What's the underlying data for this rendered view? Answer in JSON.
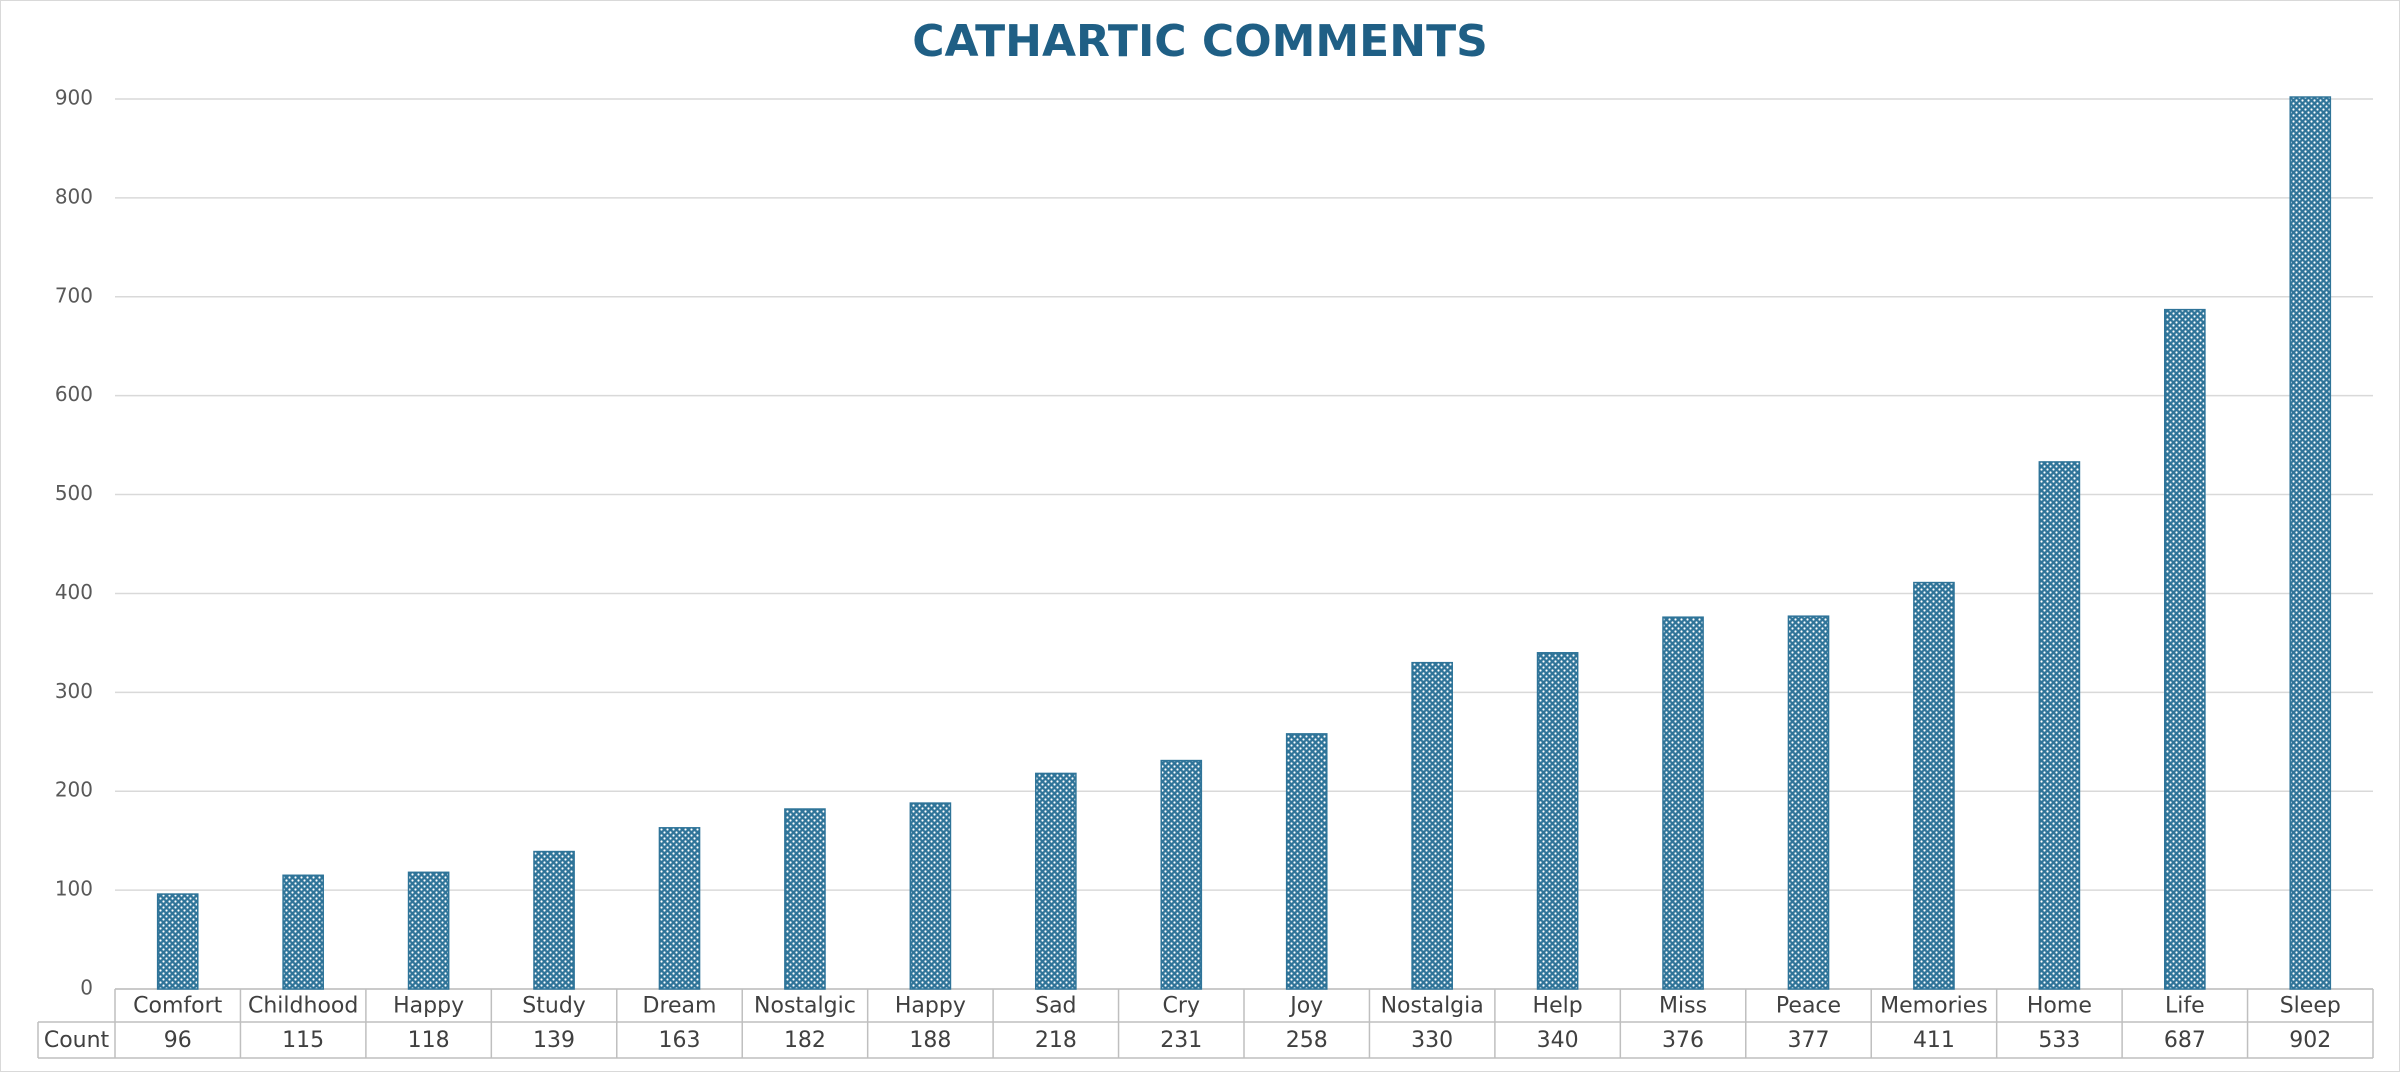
{
  "chart_data": {
    "type": "bar",
    "title": "CATHARTIC COMMENTS",
    "categories": [
      "Comfort",
      "Childhood",
      "Happy",
      "Study",
      "Dream",
      "Nostalgic",
      "Happy",
      "Sad",
      "Cry",
      "Joy",
      "Nostalgia",
      "Help",
      "Miss",
      "Peace",
      "Memories",
      "Home",
      "Life",
      "Sleep"
    ],
    "series": [
      {
        "name": "Count",
        "color": "#2f7499",
        "values": [
          96,
          115,
          118,
          139,
          163,
          182,
          188,
          218,
          231,
          258,
          330,
          340,
          376,
          377,
          411,
          533,
          687,
          902
        ]
      }
    ],
    "ylim": [
      0,
      900
    ],
    "yticks": [
      0,
      100,
      200,
      300,
      400,
      500,
      600,
      700,
      800,
      900
    ],
    "grid": true
  }
}
